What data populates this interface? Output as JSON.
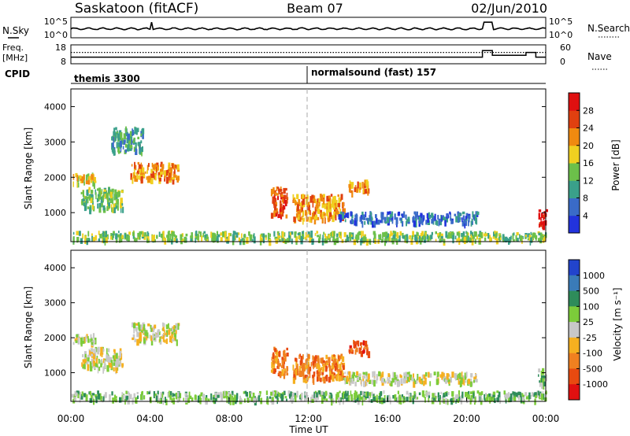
{
  "header": {
    "station": "Saskatoon (fitACF)",
    "beam": "Beam 07",
    "date": "02/Jun/2010"
  },
  "noise_panel": {
    "left_label": "N.Sky",
    "left_ticks": [
      "10^5",
      "10^0"
    ],
    "right_label": "N.Search",
    "right_ticks": [
      "10^5",
      "10^0"
    ]
  },
  "freq_panel": {
    "left_label_1": "Freq.",
    "left_label_2": "[MHz]",
    "left_ticks": [
      "18",
      "8"
    ],
    "right_label": "Nave",
    "right_ticks": [
      "60",
      "0"
    ]
  },
  "cpid": {
    "label": "CPID",
    "segments": [
      "themis 3300",
      "normalsound (fast) 157"
    ]
  },
  "colors": {
    "power_scale": [
      "#2233dd",
      "#3a6bc8",
      "#3aa08a",
      "#6cc04a",
      "#f0d020",
      "#f08a10",
      "#e04010",
      "#e01010"
    ],
    "velocity_scale": [
      "#2244cc",
      "#3a7bb8",
      "#2e8c5a",
      "#7ccc3a",
      "#c8c8c8",
      "#f5b020",
      "#f08020",
      "#e84a10",
      "#e01010"
    ]
  },
  "chart_data": [
    {
      "type": "heatmap",
      "title": "",
      "xlabel": "",
      "ylabel": "Slant Range [km]",
      "xlim": [
        "00:00",
        "24:00"
      ],
      "ylim": [
        180,
        4500
      ],
      "yticks": [
        "1000",
        "2000",
        "3000",
        "4000"
      ],
      "colorbar_label": "Power [dB]",
      "colorbar_ticks": [
        "4",
        "8",
        "12",
        "16",
        "20",
        "24",
        "28"
      ],
      "colorbar_range": [
        0,
        32
      ],
      "echo_regions": [
        {
          "t": [
            0.1,
            1.2
          ],
          "r": [
            1800,
            2100
          ],
          "level": 4
        },
        {
          "t": [
            0.5,
            2.6
          ],
          "r": [
            1100,
            1700
          ],
          "level": 3
        },
        {
          "t": [
            3.0,
            5.4
          ],
          "r": [
            1900,
            2400
          ],
          "level": 5
        },
        {
          "t": [
            2.0,
            3.6
          ],
          "r": [
            2700,
            3400
          ],
          "level": 2
        },
        {
          "t": [
            10.1,
            10.9
          ],
          "r": [
            900,
            1700
          ],
          "level": 6
        },
        {
          "t": [
            11.2,
            13.8
          ],
          "r": [
            800,
            1500
          ],
          "level": 5
        },
        {
          "t": [
            14.0,
            15.0
          ],
          "r": [
            1550,
            1900
          ],
          "level": 5
        },
        {
          "t": [
            13.5,
            20.5
          ],
          "r": [
            700,
            1000
          ],
          "level": 1
        },
        {
          "t": [
            0.0,
            24.0
          ],
          "r": [
            200,
            450
          ],
          "level": 3
        },
        {
          "t": [
            23.6,
            24.0
          ],
          "r": [
            600,
            1100
          ],
          "level": 7
        }
      ]
    },
    {
      "type": "heatmap",
      "title": "",
      "xlabel": "Time UT",
      "ylabel": "Slant Range [km]",
      "xlim": [
        "00:00",
        "24:00"
      ],
      "xticks": [
        "00:00",
        "04:00",
        "08:00",
        "12:00",
        "16:00",
        "20:00",
        "00:00"
      ],
      "ylim": [
        180,
        4500
      ],
      "yticks": [
        "1000",
        "2000",
        "3000",
        "4000"
      ],
      "colorbar_label": "Velocity [m s^-1]",
      "colorbar_ticks": [
        "1000",
        "500",
        "100",
        "25",
        "-25",
        "-100",
        "-500",
        "-1000"
      ],
      "echo_regions": [
        {
          "t": [
            0.1,
            1.2
          ],
          "r": [
            1800,
            2100
          ],
          "level": 4
        },
        {
          "t": [
            0.5,
            2.6
          ],
          "r": [
            1100,
            1700
          ],
          "level": 4
        },
        {
          "t": [
            3.0,
            5.4
          ],
          "r": [
            1900,
            2400
          ],
          "level": 4
        },
        {
          "t": [
            10.1,
            10.9
          ],
          "r": [
            900,
            1700
          ],
          "level": 6
        },
        {
          "t": [
            11.2,
            13.8
          ],
          "r": [
            800,
            1500
          ],
          "level": 6
        },
        {
          "t": [
            14.0,
            15.0
          ],
          "r": [
            1550,
            1900
          ],
          "level": 7
        },
        {
          "t": [
            13.5,
            20.5
          ],
          "r": [
            700,
            1000
          ],
          "level": 4
        },
        {
          "t": [
            0.0,
            24.0
          ],
          "r": [
            200,
            450
          ],
          "level": 3
        },
        {
          "t": [
            23.6,
            24.0
          ],
          "r": [
            600,
            1100
          ],
          "level": 3
        }
      ]
    }
  ]
}
